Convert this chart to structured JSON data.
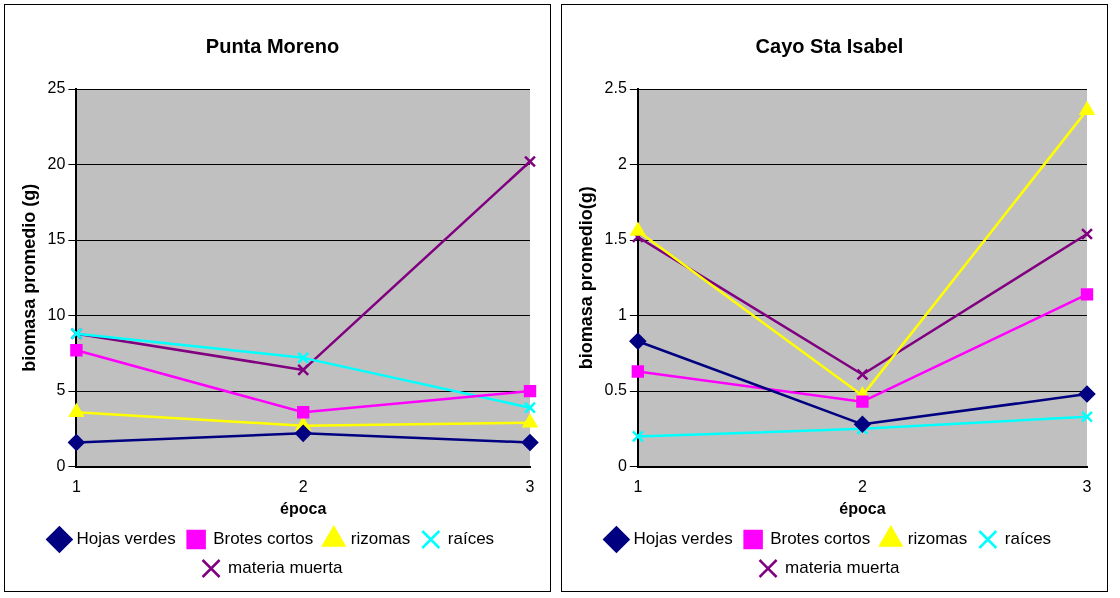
{
  "chart_data": [
    {
      "type": "line",
      "title": "Punta Moreno",
      "xlabel": "época",
      "ylabel": "biomasa promedio (g)",
      "categories": [
        "1",
        "2",
        "3"
      ],
      "ylim": [
        0,
        25
      ],
      "yticks": [
        0,
        5,
        10,
        15,
        20,
        25
      ],
      "grid": "y",
      "legend": "bottom",
      "line_style": "solid",
      "series": [
        {
          "name": "Hojas verdes",
          "color": "#000080",
          "marker": "diamond",
          "values": [
            1.6,
            2.2,
            1.6
          ]
        },
        {
          "name": "Brotes cortos",
          "color": "#ff00ff",
          "marker": "square",
          "values": [
            7.7,
            3.6,
            5.0
          ]
        },
        {
          "name": "rizomas",
          "color": "#ffff00",
          "marker": "triangle",
          "values": [
            3.6,
            2.7,
            2.9
          ]
        },
        {
          "name": "raíces",
          "color": "#00ffff",
          "marker": "cross",
          "values": [
            8.8,
            7.2,
            3.9
          ]
        },
        {
          "name": "materia muerta",
          "color": "#800080",
          "marker": "cross",
          "values": [
            8.8,
            6.4,
            20.2
          ]
        }
      ]
    },
    {
      "type": "line",
      "title": "Cayo Sta Isabel",
      "xlabel": "época",
      "ylabel": "biomasa promedio(g)",
      "categories": [
        "1",
        "2",
        "3"
      ],
      "ylim": [
        0,
        2.5
      ],
      "yticks": [
        0,
        0.5,
        1,
        1.5,
        2,
        2.5
      ],
      "grid": "y",
      "legend": "bottom",
      "line_style": "solid",
      "series": [
        {
          "name": "Hojas verdes",
          "color": "#000080",
          "marker": "diamond",
          "values": [
            0.83,
            0.28,
            0.48
          ]
        },
        {
          "name": "Brotes cortos",
          "color": "#ff00ff",
          "marker": "square",
          "values": [
            0.63,
            0.43,
            1.14
          ]
        },
        {
          "name": "rizomas",
          "color": "#ffff00",
          "marker": "triangle",
          "values": [
            1.56,
            0.47,
            2.36
          ]
        },
        {
          "name": "raíces",
          "color": "#00ffff",
          "marker": "cross",
          "values": [
            0.2,
            0.25,
            0.33
          ]
        },
        {
          "name": "materia muerta",
          "color": "#800080",
          "marker": "cross",
          "values": [
            1.52,
            0.61,
            1.54
          ]
        }
      ]
    }
  ]
}
